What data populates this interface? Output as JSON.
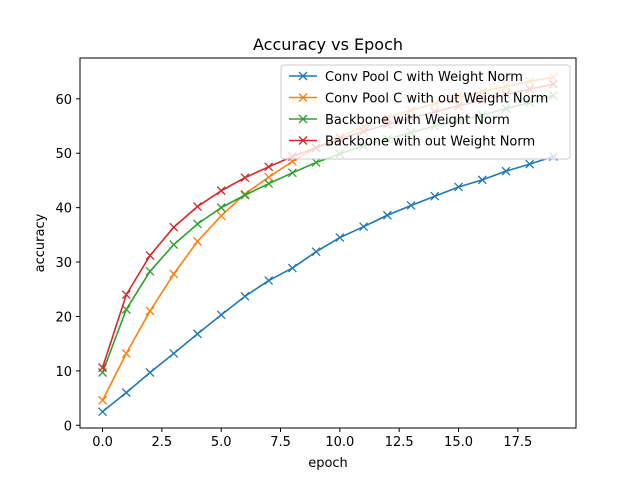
{
  "chart_data": {
    "type": "line",
    "title": "Accuracy vs Epoch",
    "xlabel": "epoch",
    "ylabel": "accuracy",
    "xlim": [
      -0.95,
      19.95
    ],
    "ylim": [
      -0.5,
      67.5
    ],
    "xticks": [
      0,
      2.5,
      5,
      7.5,
      10,
      12.5,
      15,
      17.5
    ],
    "xtick_labels": [
      "0.0",
      "2.5",
      "5.0",
      "7.5",
      "10.0",
      "12.5",
      "15.0",
      "17.5"
    ],
    "yticks": [
      0,
      10,
      20,
      30,
      40,
      50,
      60
    ],
    "ytick_labels": [
      "0",
      "10",
      "20",
      "30",
      "40",
      "50",
      "60"
    ],
    "grid": false,
    "legend_position": "top-right",
    "marker": "x",
    "x": [
      0,
      1,
      2,
      3,
      4,
      5,
      6,
      7,
      8,
      9,
      10,
      11,
      12,
      13,
      14,
      15,
      16,
      17,
      18,
      19
    ],
    "series": [
      {
        "name": "Conv Pool C with Weight Norm",
        "color": "#1f77b4",
        "values": [
          2.5,
          6.0,
          9.7,
          13.2,
          16.8,
          20.3,
          23.7,
          26.6,
          28.9,
          31.9,
          34.5,
          36.5,
          38.6,
          40.4,
          42.1,
          43.8,
          45.1,
          46.7,
          48.0,
          49.4
        ]
      },
      {
        "name": "Conv Pool C with out Weight Norm",
        "color": "#ff7f0e",
        "values": [
          4.6,
          13.2,
          21.0,
          27.8,
          33.8,
          38.5,
          42.5,
          45.6,
          48.5,
          51.0,
          53.0,
          54.9,
          56.5,
          57.9,
          59.1,
          60.3,
          61.3,
          62.3,
          63.2,
          64.0
        ]
      },
      {
        "name": "Backbone with Weight Norm",
        "color": "#2ca02c",
        "values": [
          9.7,
          21.3,
          28.3,
          33.2,
          37.0,
          40.0,
          42.3,
          44.4,
          46.4,
          48.3,
          49.9,
          51.4,
          52.6,
          53.8,
          55.0,
          56.0,
          57.0,
          58.2,
          59.3,
          60.6
        ]
      },
      {
        "name": "Backbone with out Weight Norm",
        "color": "#d62728",
        "values": [
          10.6,
          24.0,
          31.2,
          36.4,
          40.2,
          43.1,
          45.5,
          47.5,
          49.4,
          51.0,
          52.6,
          54.0,
          55.3,
          56.5,
          57.6,
          58.7,
          59.8,
          60.8,
          61.8,
          62.7
        ]
      }
    ]
  }
}
